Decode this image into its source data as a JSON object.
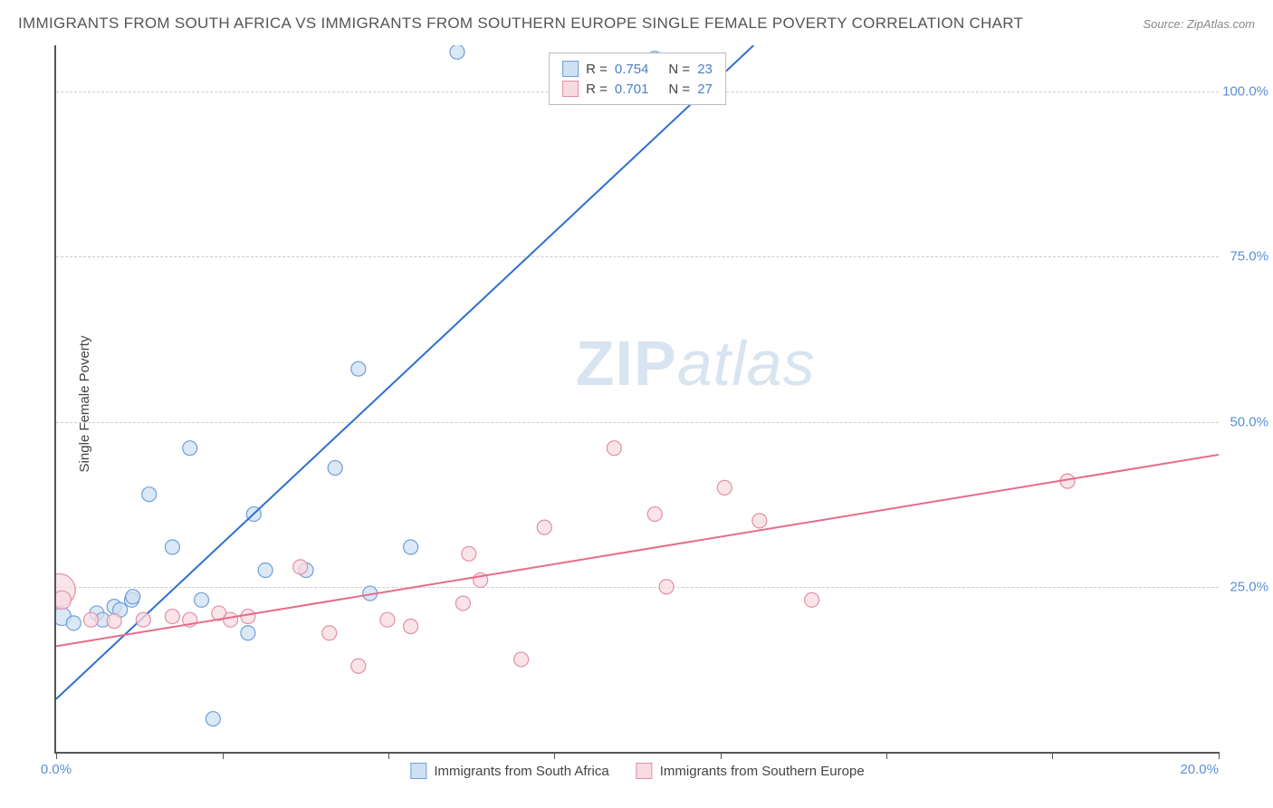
{
  "title": "IMMIGRANTS FROM SOUTH AFRICA VS IMMIGRANTS FROM SOUTHERN EUROPE SINGLE FEMALE POVERTY CORRELATION CHART",
  "source": "Source: ZipAtlas.com",
  "y_axis_label": "Single Female Poverty",
  "watermark_bold": "ZIP",
  "watermark_italic": "atlas",
  "chart": {
    "type": "scatter-with-regression",
    "xlim": [
      0,
      20
    ],
    "ylim": [
      0,
      107
    ],
    "x_ticks": [
      0,
      2.86,
      5.71,
      8.57,
      11.43,
      14.29,
      17.14,
      20
    ],
    "x_tick_labels_shown": {
      "0": "0.0%",
      "20": "20.0%"
    },
    "y_ticks": [
      25,
      50,
      75,
      100
    ],
    "y_tick_labels": [
      "25.0%",
      "50.0%",
      "75.0%",
      "100.0%"
    ],
    "grid_color": "#cccccc",
    "axis_color": "#555555",
    "tick_label_color": "#5a8fd6",
    "background_color": "#ffffff",
    "series": [
      {
        "name": "Immigrants from South Africa",
        "label": "Immigrants from South Africa",
        "marker_fill": "#cfe0f2",
        "marker_stroke": "#6f9fd8",
        "marker_opacity": 0.75,
        "marker_radius": 8,
        "line_color": "#2f6fd0",
        "line_width": 2,
        "R": "0.754",
        "N": "23",
        "regression": {
          "x1": 0,
          "y1": 8,
          "x2": 12,
          "y2": 107
        },
        "points": [
          {
            "x": 0.1,
            "y": 20.5,
            "r": 10
          },
          {
            "x": 0.3,
            "y": 19.5,
            "r": 8
          },
          {
            "x": 0.7,
            "y": 21,
            "r": 8
          },
          {
            "x": 0.8,
            "y": 20,
            "r": 8
          },
          {
            "x": 1.0,
            "y": 22,
            "r": 8
          },
          {
            "x": 1.1,
            "y": 21.5,
            "r": 8
          },
          {
            "x": 1.3,
            "y": 23,
            "r": 8
          },
          {
            "x": 1.32,
            "y": 23.5,
            "r": 8
          },
          {
            "x": 1.6,
            "y": 39,
            "r": 8
          },
          {
            "x": 2.0,
            "y": 31,
            "r": 8
          },
          {
            "x": 2.3,
            "y": 46,
            "r": 8
          },
          {
            "x": 2.5,
            "y": 23,
            "r": 8
          },
          {
            "x": 2.7,
            "y": 5,
            "r": 8
          },
          {
            "x": 3.3,
            "y": 18,
            "r": 8
          },
          {
            "x": 3.4,
            "y": 36,
            "r": 8
          },
          {
            "x": 3.6,
            "y": 27.5,
            "r": 8
          },
          {
            "x": 4.3,
            "y": 27.5,
            "r": 8
          },
          {
            "x": 4.8,
            "y": 43,
            "r": 8
          },
          {
            "x": 5.2,
            "y": 58,
            "r": 8
          },
          {
            "x": 5.4,
            "y": 24,
            "r": 8
          },
          {
            "x": 6.1,
            "y": 31,
            "r": 8
          },
          {
            "x": 6.9,
            "y": 106,
            "r": 8
          },
          {
            "x": 10.3,
            "y": 105,
            "r": 8
          }
        ]
      },
      {
        "name": "Immigrants from Southern Europe",
        "label": "Immigrants from Southern Europe",
        "marker_fill": "#f7dbe2",
        "marker_stroke": "#e48fa5",
        "marker_opacity": 0.75,
        "marker_radius": 8,
        "line_color": "#e86b8a",
        "line_width": 2,
        "R": "0.701",
        "N": "27",
        "regression": {
          "x1": 0,
          "y1": 16,
          "x2": 20,
          "y2": 45
        },
        "points": [
          {
            "x": 0.05,
            "y": 24.5,
            "r": 18
          },
          {
            "x": 0.1,
            "y": 23,
            "r": 10
          },
          {
            "x": 0.6,
            "y": 20,
            "r": 8
          },
          {
            "x": 1.0,
            "y": 19.8,
            "r": 8
          },
          {
            "x": 1.5,
            "y": 20,
            "r": 8
          },
          {
            "x": 2.0,
            "y": 20.5,
            "r": 8
          },
          {
            "x": 2.3,
            "y": 20,
            "r": 8
          },
          {
            "x": 2.8,
            "y": 21,
            "r": 8
          },
          {
            "x": 3.0,
            "y": 20,
            "r": 8
          },
          {
            "x": 3.3,
            "y": 20.5,
            "r": 8
          },
          {
            "x": 4.2,
            "y": 28,
            "r": 8
          },
          {
            "x": 4.7,
            "y": 18,
            "r": 8
          },
          {
            "x": 5.2,
            "y": 13,
            "r": 8
          },
          {
            "x": 5.7,
            "y": 20,
            "r": 8
          },
          {
            "x": 6.1,
            "y": 19,
            "r": 8
          },
          {
            "x": 7.0,
            "y": 22.5,
            "r": 8
          },
          {
            "x": 7.1,
            "y": 30,
            "r": 8
          },
          {
            "x": 7.3,
            "y": 26,
            "r": 8
          },
          {
            "x": 8.0,
            "y": 14,
            "r": 8
          },
          {
            "x": 8.4,
            "y": 34,
            "r": 8
          },
          {
            "x": 9.6,
            "y": 46,
            "r": 8
          },
          {
            "x": 10.3,
            "y": 36,
            "r": 8
          },
          {
            "x": 10.5,
            "y": 25,
            "r": 8
          },
          {
            "x": 11.5,
            "y": 40,
            "r": 8
          },
          {
            "x": 12.1,
            "y": 35,
            "r": 8
          },
          {
            "x": 13.0,
            "y": 23,
            "r": 8
          },
          {
            "x": 17.4,
            "y": 41,
            "r": 8
          }
        ]
      }
    ]
  },
  "legend_top": {
    "R_label": "R =",
    "N_label": "N ="
  }
}
